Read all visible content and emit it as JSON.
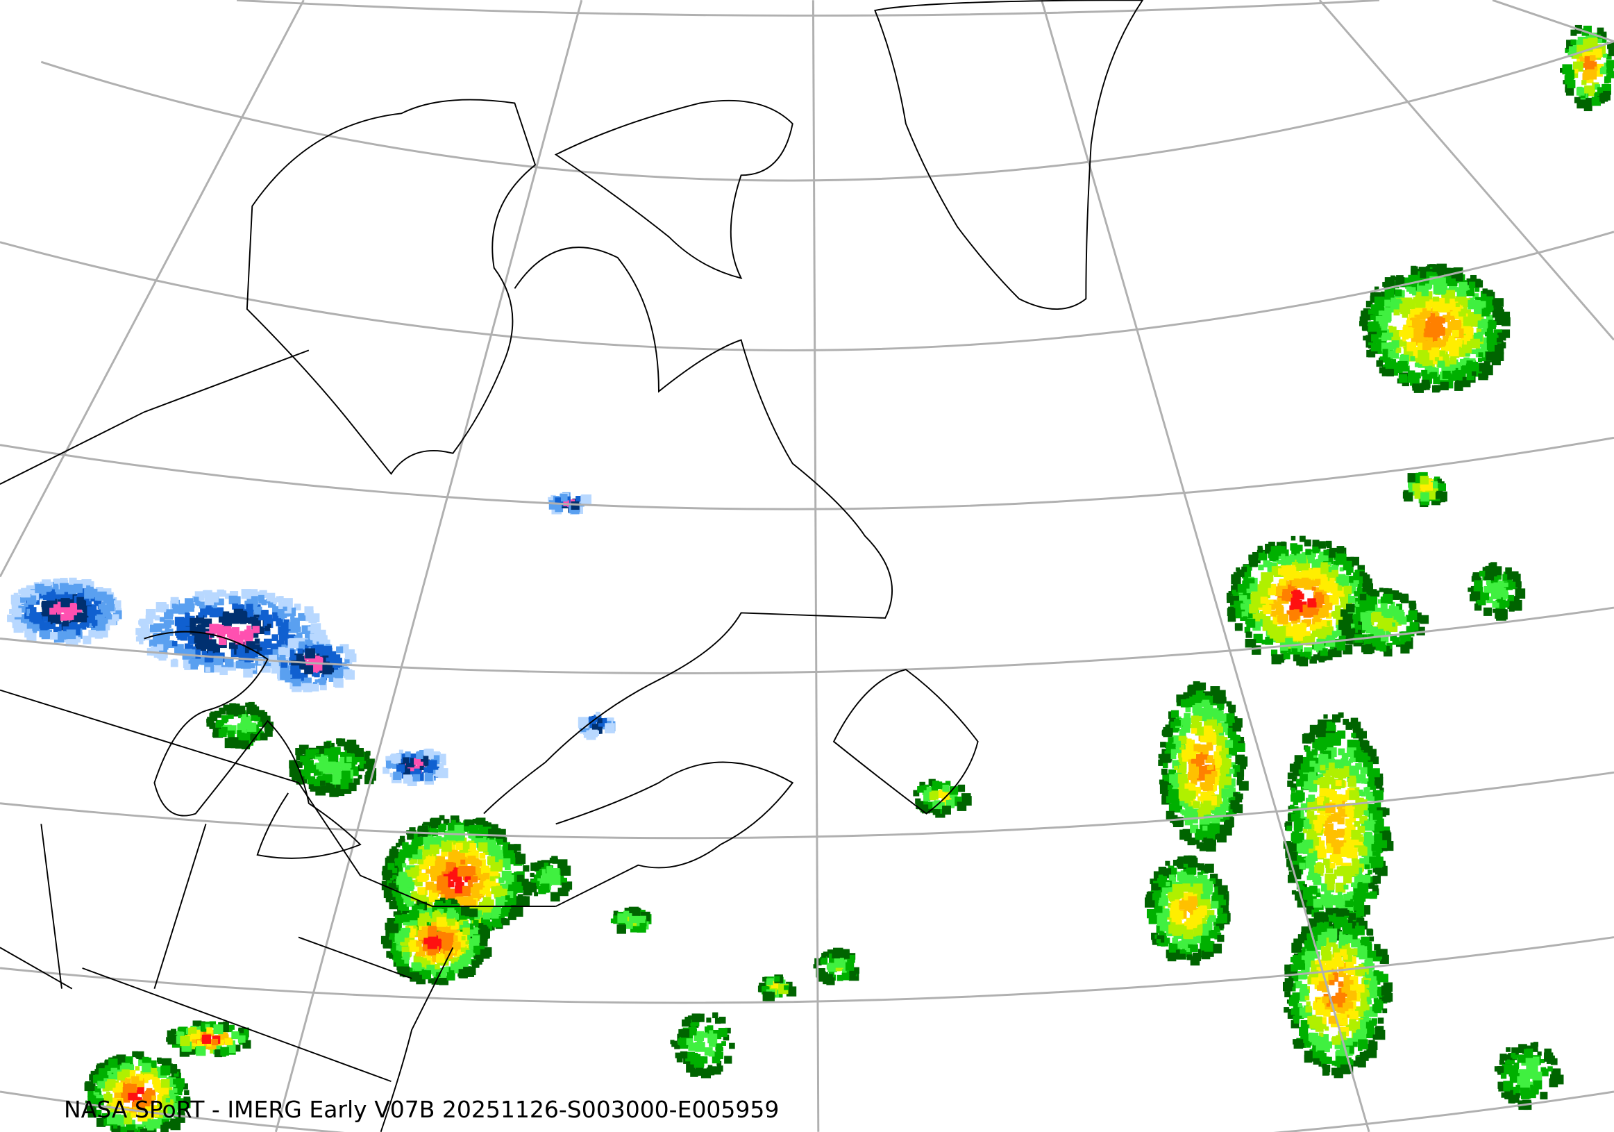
{
  "caption": "NASA SPoRT - IMERG Early V07B 20251126-S003000-E005959",
  "precip_colors": {
    "very_light_blue": "#b8d8ff",
    "light_blue": "#5aa0f0",
    "blue": "#1060d0",
    "dark_blue": "#003070",
    "pink": "#ff50b0",
    "dark_green": "#006400",
    "green": "#00b000",
    "light_green": "#40f040",
    "yellow_green": "#b0f000",
    "yellow": "#ffee00",
    "gold": "#ffc000",
    "orange": "#ff8000",
    "red": "#ff1010"
  },
  "map": {
    "graticule": true,
    "region": "Northeastern North America, Greenland and North Atlantic"
  }
}
